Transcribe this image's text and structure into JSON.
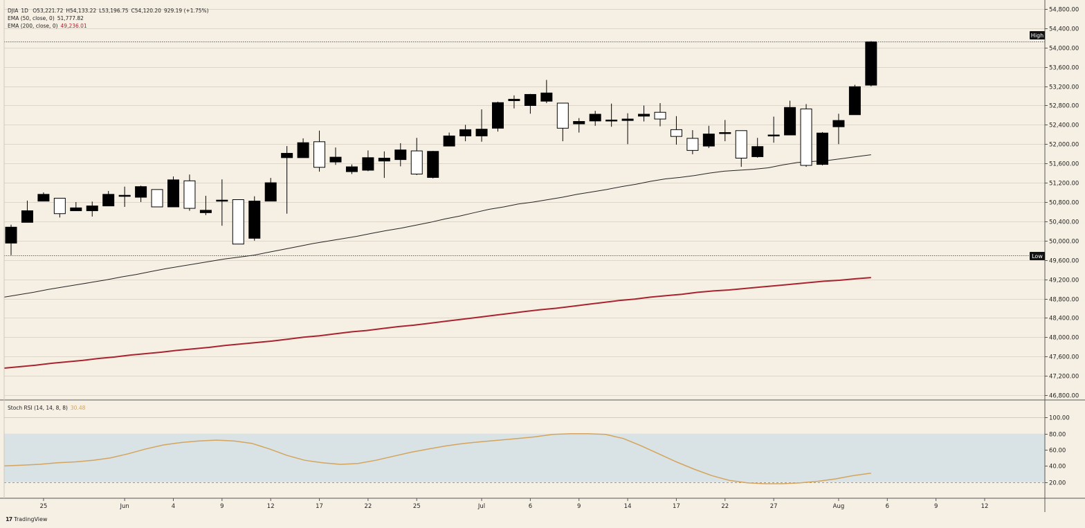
{
  "symbol": {
    "name": "DJIA",
    "interval": "1D",
    "open": "O53,221.72",
    "high": "H54,133.22",
    "low": "L53,196.75",
    "close": "C54,120.20",
    "change": "929.19 (+1.75%)"
  },
  "indicators": {
    "ema50_label": "EMA (50, close, 0)",
    "ema50_value": "51,777.82",
    "ema200_label": "EMA (200, close, 0)",
    "ema200_value": "49,236.01",
    "stoch_label": "Stoch RSI (14, 14, 8, 8)",
    "stoch_value": "30.48"
  },
  "markers": {
    "high": "High",
    "low": "Low"
  },
  "brand": "TradingView",
  "colors": {
    "background": "#f6f0e4",
    "ema50": "#222222",
    "ema200": "#a8232e",
    "stoch": "#d4a45c",
    "stoch_band": "#d9e2e4",
    "candle_up": "#ffffff",
    "candle_down": "#000000"
  },
  "chart_data": {
    "type": "candlestick",
    "price_axis": {
      "range": [
        46700,
        54900
      ],
      "ticks": [
        "54,800.00",
        "54,400.00",
        "54,000.00",
        "53,600.00",
        "53,200.00",
        "52,800.00",
        "52,400.00",
        "52,000.00",
        "51,600.00",
        "51,200.00",
        "50,800.00",
        "50,400.00",
        "50,000.00",
        "49,600.00",
        "49,200.00",
        "48,800.00",
        "48,400.00",
        "48,000.00",
        "47,600.00",
        "47,200.00",
        "46,800.00"
      ],
      "tick_values": [
        54800,
        54400,
        54000,
        53600,
        53200,
        52800,
        52400,
        52000,
        51600,
        51200,
        50800,
        50400,
        50000,
        49600,
        49200,
        48800,
        48400,
        48000,
        47600,
        47200,
        46800
      ]
    },
    "x_axis": {
      "labels": [
        "25",
        "Jun",
        "4",
        "9",
        "12",
        "17",
        "22",
        "25",
        "Jul",
        "6",
        "9",
        "14",
        "17",
        "22",
        "27",
        "Aug",
        "6",
        "9",
        "12"
      ],
      "label_index": [
        2,
        7,
        10,
        13,
        16,
        19,
        22,
        25,
        29,
        32,
        35,
        38,
        41,
        44,
        47,
        51,
        54,
        57,
        60
      ]
    },
    "high_line": 54133,
    "low_line": 49700,
    "candles": [
      {
        "o": 49950,
        "c": 50280,
        "h": 50330,
        "l": 49700
      },
      {
        "o": 50380,
        "c": 50620,
        "h": 50830,
        "l": 50380
      },
      {
        "o": 50820,
        "c": 50960,
        "h": 51000,
        "l": 50820
      },
      {
        "o": 50880,
        "c": 50560,
        "h": 50880,
        "l": 50480
      },
      {
        "o": 50620,
        "c": 50680,
        "h": 50800,
        "l": 50620
      },
      {
        "o": 50620,
        "c": 50720,
        "h": 50810,
        "l": 50500
      },
      {
        "o": 50720,
        "c": 50960,
        "h": 51030,
        "l": 50720
      },
      {
        "o": 50940,
        "c": 50940,
        "h": 51120,
        "l": 50700
      },
      {
        "o": 50900,
        "c": 51120,
        "h": 51140,
        "l": 50800
      },
      {
        "o": 51060,
        "c": 50700,
        "h": 51060,
        "l": 50700
      },
      {
        "o": 50700,
        "c": 51260,
        "h": 51330,
        "l": 50700
      },
      {
        "o": 51240,
        "c": 50670,
        "h": 51370,
        "l": 50620
      },
      {
        "o": 50580,
        "c": 50630,
        "h": 50930,
        "l": 50530
      },
      {
        "o": 50840,
        "c": 50840,
        "h": 51270,
        "l": 50310
      },
      {
        "o": 50850,
        "c": 49930,
        "h": 50850,
        "l": 49930
      },
      {
        "o": 50050,
        "c": 50820,
        "h": 50920,
        "l": 50000
      },
      {
        "o": 50820,
        "c": 51200,
        "h": 51300,
        "l": 50820
      },
      {
        "o": 51720,
        "c": 51810,
        "h": 51960,
        "l": 50560
      },
      {
        "o": 51720,
        "c": 52030,
        "h": 52120,
        "l": 51720
      },
      {
        "o": 52050,
        "c": 51520,
        "h": 52280,
        "l": 51430
      },
      {
        "o": 51630,
        "c": 51730,
        "h": 51930,
        "l": 51570
      },
      {
        "o": 51430,
        "c": 51530,
        "h": 51580,
        "l": 51380
      },
      {
        "o": 51460,
        "c": 51720,
        "h": 51870,
        "l": 51440
      },
      {
        "o": 51650,
        "c": 51710,
        "h": 51850,
        "l": 51300
      },
      {
        "o": 51680,
        "c": 51880,
        "h": 52020,
        "l": 51540
      },
      {
        "o": 51860,
        "c": 51380,
        "h": 52130,
        "l": 51360
      },
      {
        "o": 51310,
        "c": 51850,
        "h": 51860,
        "l": 51290
      },
      {
        "o": 51960,
        "c": 52170,
        "h": 52240,
        "l": 51960
      },
      {
        "o": 52170,
        "c": 52300,
        "h": 52400,
        "l": 52060
      },
      {
        "o": 52170,
        "c": 52310,
        "h": 52720,
        "l": 52050
      },
      {
        "o": 52330,
        "c": 52860,
        "h": 52880,
        "l": 52260
      },
      {
        "o": 52900,
        "c": 52930,
        "h": 53010,
        "l": 52740
      },
      {
        "o": 52800,
        "c": 53030,
        "h": 53040,
        "l": 52630
      },
      {
        "o": 52890,
        "c": 53060,
        "h": 53330,
        "l": 52850
      },
      {
        "o": 52850,
        "c": 52330,
        "h": 52850,
        "l": 52060
      },
      {
        "o": 52420,
        "c": 52470,
        "h": 52540,
        "l": 52240
      },
      {
        "o": 52480,
        "c": 52620,
        "h": 52690,
        "l": 52380
      },
      {
        "o": 52480,
        "c": 52500,
        "h": 52840,
        "l": 52360
      },
      {
        "o": 52490,
        "c": 52520,
        "h": 52640,
        "l": 52000
      },
      {
        "o": 52580,
        "c": 52620,
        "h": 52800,
        "l": 52470
      },
      {
        "o": 52660,
        "c": 52520,
        "h": 52850,
        "l": 52370
      },
      {
        "o": 52300,
        "c": 52160,
        "h": 52580,
        "l": 51990
      },
      {
        "o": 52120,
        "c": 51870,
        "h": 52290,
        "l": 51790
      },
      {
        "o": 51960,
        "c": 52210,
        "h": 52380,
        "l": 51920
      },
      {
        "o": 52220,
        "c": 52240,
        "h": 52500,
        "l": 52060
      },
      {
        "o": 52280,
        "c": 51710,
        "h": 52280,
        "l": 51530
      },
      {
        "o": 51740,
        "c": 51950,
        "h": 52130,
        "l": 51720
      },
      {
        "o": 52170,
        "c": 52190,
        "h": 52570,
        "l": 52030
      },
      {
        "o": 52190,
        "c": 52760,
        "h": 52900,
        "l": 52190
      },
      {
        "o": 52730,
        "c": 51560,
        "h": 52830,
        "l": 51530
      },
      {
        "o": 51580,
        "c": 52230,
        "h": 52250,
        "l": 51560
      },
      {
        "o": 52360,
        "c": 52490,
        "h": 52630,
        "l": 52000
      },
      {
        "o": 52610,
        "c": 53190,
        "h": 53230,
        "l": 52610
      },
      {
        "o": 53222,
        "c": 54120,
        "h": 54133,
        "l": 53197
      }
    ],
    "ema50": [
      48830,
      48880,
      48930,
      48990,
      49040,
      49090,
      49140,
      49190,
      49250,
      49300,
      49360,
      49420,
      49470,
      49520,
      49570,
      49620,
      49660,
      49700,
      49760,
      49820,
      49880,
      49940,
      49990,
      50040,
      50090,
      50150,
      50210,
      50260,
      50320,
      50380,
      50450,
      50510,
      50580,
      50650,
      50700,
      50760,
      50800,
      50850,
      50900,
      50960,
      51010,
      51060,
      51120,
      51170,
      51230,
      51280,
      51310,
      51350,
      51400,
      51440,
      51460,
      51480,
      51510,
      51570,
      51620,
      51640,
      51660,
      51700,
      51740,
      51780
    ],
    "ema200": [
      47360,
      47390,
      47420,
      47460,
      47490,
      47520,
      47560,
      47590,
      47630,
      47660,
      47690,
      47730,
      47760,
      47790,
      47830,
      47860,
      47890,
      47920,
      47960,
      48000,
      48030,
      48070,
      48110,
      48140,
      48180,
      48220,
      48250,
      48290,
      48330,
      48370,
      48410,
      48450,
      48490,
      48530,
      48570,
      48600,
      48640,
      48680,
      48720,
      48760,
      48790,
      48830,
      48860,
      48890,
      48930,
      48960,
      48980,
      49010,
      49040,
      49070,
      49100,
      49130,
      49160,
      49180,
      49210,
      49236
    ],
    "stoch_rsi": {
      "range": [
        0,
        120
      ],
      "ticks": [
        "100.00",
        "80.00",
        "60.00",
        "40.00",
        "20.00"
      ],
      "tick_values": [
        100,
        80,
        60,
        40,
        20
      ],
      "band": [
        20,
        80
      ],
      "values": [
        40,
        41,
        42,
        44,
        45,
        47,
        50,
        55,
        61,
        66,
        69,
        71,
        72,
        71,
        68,
        61,
        53,
        47,
        44,
        42,
        43,
        47,
        52,
        57,
        61,
        65,
        68,
        70,
        72,
        74,
        76,
        79,
        80,
        80,
        79,
        74,
        65,
        55,
        45,
        36,
        28,
        22,
        19,
        18,
        18,
        19,
        21,
        24,
        28,
        31
      ]
    }
  }
}
